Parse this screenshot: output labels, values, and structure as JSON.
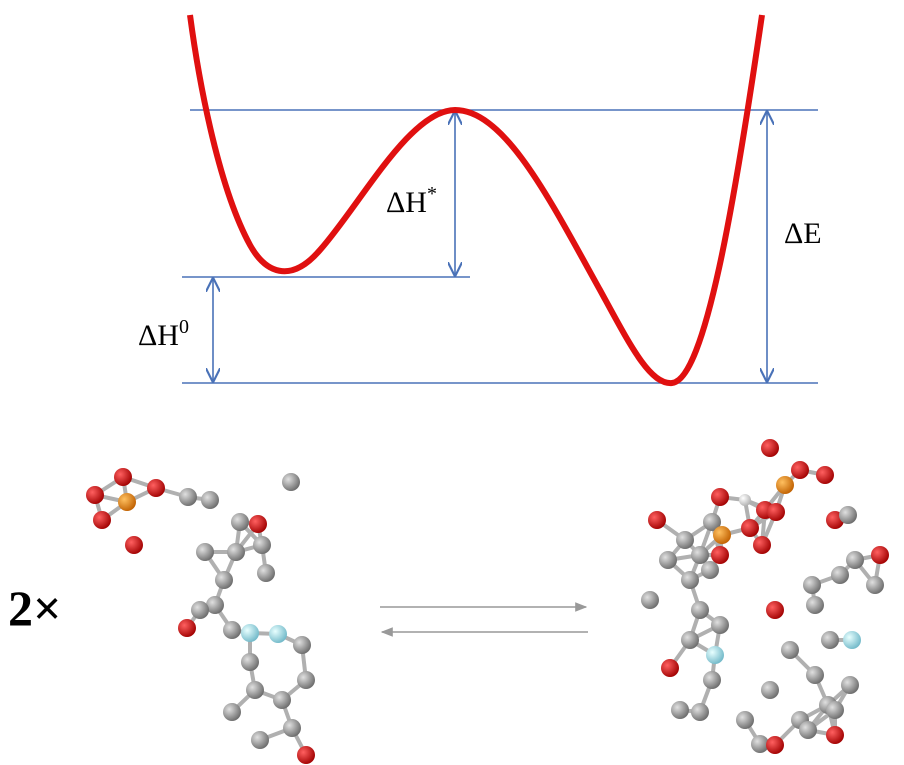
{
  "labels": {
    "activation": {
      "base": "ΔH",
      "sup": "*"
    },
    "total": "ΔE",
    "reaction": {
      "base": "ΔH",
      "sup": "0"
    },
    "multiplier": "2×"
  }
}
